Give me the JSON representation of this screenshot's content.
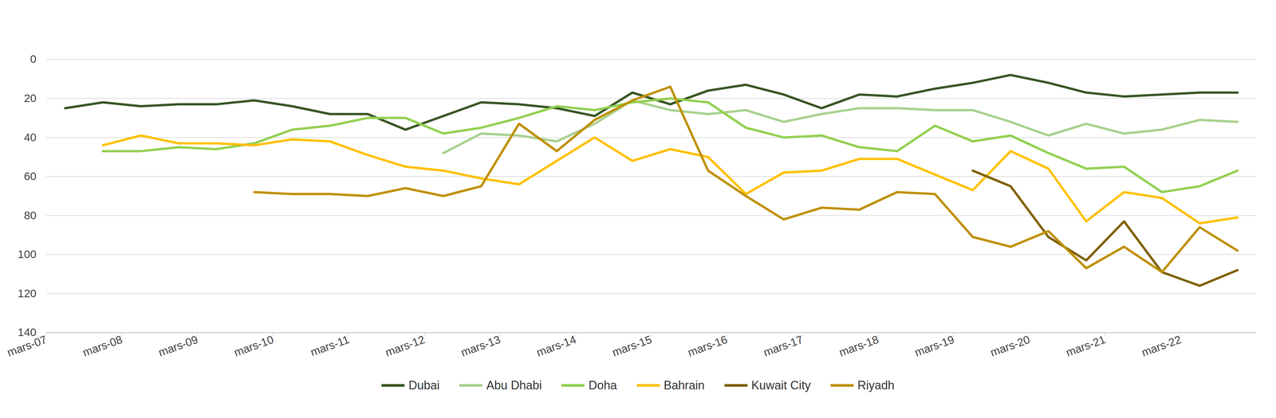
{
  "chart_data": {
    "type": "line",
    "x": [
      7.25,
      7.75,
      8.25,
      8.75,
      9.25,
      9.75,
      10.25,
      10.75,
      11.25,
      11.75,
      12.25,
      12.75,
      13.25,
      13.75,
      14.25,
      14.75,
      15.25,
      15.75,
      16.25,
      16.75,
      17.25,
      17.75,
      18.25,
      18.75,
      19.25,
      19.75,
      20.25,
      20.75,
      21.25,
      21.75,
      22.25,
      22.75
    ],
    "xlim": [
      7,
      23
    ],
    "xticks": [
      {
        "value": 7,
        "label": "mars-07"
      },
      {
        "value": 8,
        "label": "mars-08"
      },
      {
        "value": 9,
        "label": "mars-09"
      },
      {
        "value": 10,
        "label": "mars-10"
      },
      {
        "value": 11,
        "label": "mars-11"
      },
      {
        "value": 12,
        "label": "mars-12"
      },
      {
        "value": 13,
        "label": "mars-13"
      },
      {
        "value": 14,
        "label": "mars-14"
      },
      {
        "value": 15,
        "label": "mars-15"
      },
      {
        "value": 16,
        "label": "mars-16"
      },
      {
        "value": 17,
        "label": "mars-17"
      },
      {
        "value": 18,
        "label": "mars-18"
      },
      {
        "value": 19,
        "label": "mars-19"
      },
      {
        "value": 20,
        "label": "mars-20"
      },
      {
        "value": 21,
        "label": "mars-21"
      },
      {
        "value": 22,
        "label": "mars-22"
      }
    ],
    "ylim": [
      0,
      140
    ],
    "yticks": [
      0,
      20,
      40,
      60,
      80,
      100,
      120,
      140
    ],
    "grid": true,
    "legend": "bottom",
    "series": [
      {
        "name": "Dubai",
        "color": "#375623",
        "values": [
          25,
          22,
          24,
          23,
          23,
          21,
          24,
          28,
          28,
          36,
          29,
          22,
          23,
          25,
          29,
          17,
          23,
          16,
          13,
          18,
          25,
          18,
          19,
          15,
          12,
          8,
          12,
          17,
          19,
          18,
          17,
          17
        ]
      },
      {
        "name": "Abu Dhabi",
        "color": "#a9d18e",
        "values": [
          null,
          null,
          null,
          null,
          null,
          null,
          null,
          null,
          null,
          null,
          48,
          38,
          39,
          42,
          33,
          21,
          26,
          28,
          26,
          32,
          28,
          25,
          25,
          26,
          26,
          32,
          39,
          33,
          38,
          36,
          31,
          32
        ]
      },
      {
        "name": "Doha",
        "color": "#92d050",
        "values": [
          null,
          47,
          47,
          45,
          46,
          43,
          36,
          34,
          30,
          30,
          38,
          35,
          30,
          24,
          26,
          22,
          20,
          22,
          35,
          40,
          39,
          45,
          47,
          34,
          42,
          39,
          48,
          56,
          55,
          68,
          65,
          57
        ]
      },
      {
        "name": "Bahrain",
        "color": "#ffc000",
        "values": [
          null,
          44,
          39,
          43,
          43,
          44,
          41,
          42,
          49,
          55,
          57,
          61,
          64,
          52,
          40,
          52,
          46,
          50,
          69,
          58,
          57,
          51,
          51,
          59,
          67,
          47,
          56,
          83,
          68,
          71,
          84,
          81
        ]
      },
      {
        "name": "Kuwait City",
        "color": "#7f6000",
        "values": [
          null,
          null,
          null,
          null,
          null,
          null,
          null,
          null,
          null,
          null,
          null,
          null,
          null,
          null,
          null,
          null,
          null,
          null,
          null,
          null,
          null,
          null,
          null,
          null,
          57,
          65,
          91,
          103,
          83,
          109,
          116,
          108
        ]
      },
      {
        "name": "Riyadh",
        "color": "#bf9000",
        "values": [
          null,
          null,
          null,
          null,
          null,
          68,
          69,
          69,
          70,
          66,
          70,
          65,
          33,
          47,
          31,
          21,
          14,
          57,
          70,
          82,
          76,
          77,
          68,
          69,
          91,
          96,
          88,
          107,
          96,
          109,
          86,
          98
        ]
      }
    ]
  }
}
